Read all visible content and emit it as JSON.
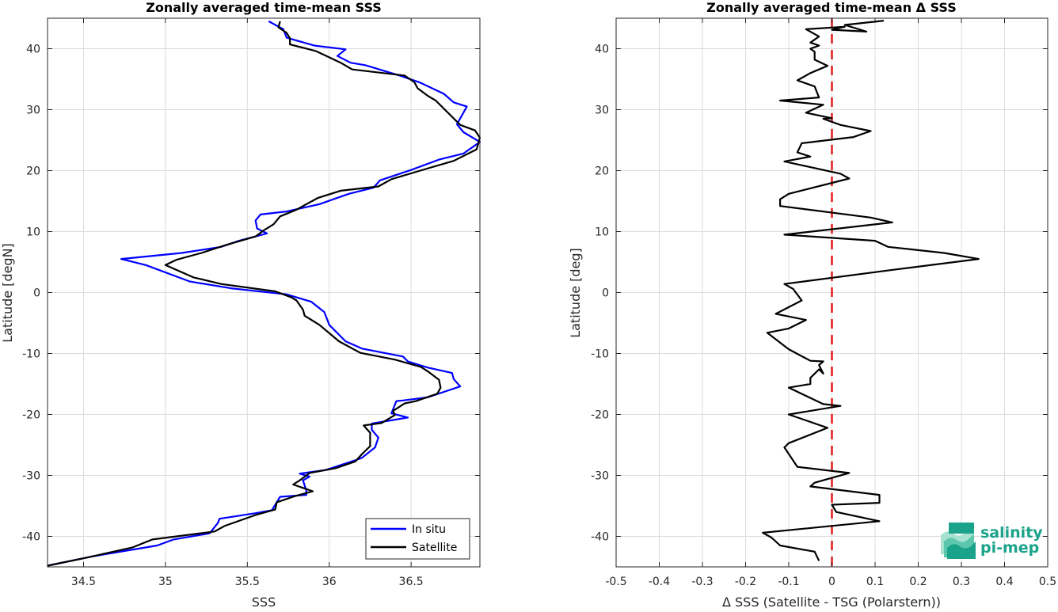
{
  "chart_data": [
    {
      "type": "line",
      "title": "Zonally averaged time-mean SSS",
      "xlabel": "SSS",
      "ylabel": "Latitude [degN]",
      "xlim": [
        34.28,
        36.92
      ],
      "ylim": [
        -45,
        45
      ],
      "xticks": [
        34.5,
        35,
        35.5,
        36,
        36.5
      ],
      "xtick_labels": [
        "34.5",
        "35",
        "35.5",
        "36",
        "36.5"
      ],
      "yticks": [
        -40,
        -30,
        -20,
        -10,
        0,
        10,
        20,
        30,
        40
      ],
      "ytick_labels": [
        "-40",
        "-30",
        "-20",
        "-10",
        "0",
        "10",
        "20",
        "30",
        "40"
      ],
      "grid": true,
      "legend_position": "bottom-right",
      "series": [
        {
          "name": "In situ",
          "color": "#0000ff",
          "points": [
            [
              34.28,
              -44.8
            ],
            [
              34.55,
              -43.3
            ],
            [
              34.95,
              -41.5
            ],
            [
              35.05,
              -40.5
            ],
            [
              35.27,
              -39.5
            ],
            [
              35.32,
              -37.8
            ],
            [
              35.33,
              -37.1
            ],
            [
              35.55,
              -36.2
            ],
            [
              35.65,
              -35.7
            ],
            [
              35.7,
              -33.5
            ],
            [
              35.86,
              -33.2
            ],
            [
              35.86,
              -32.5
            ],
            [
              35.84,
              -30.8
            ],
            [
              35.88,
              -30.2
            ],
            [
              35.82,
              -29.7
            ],
            [
              35.98,
              -29.1
            ],
            [
              36.16,
              -27.5
            ],
            [
              36.2,
              -27.1
            ],
            [
              36.28,
              -25.4
            ],
            [
              36.3,
              -23.8
            ],
            [
              36.26,
              -22.5
            ],
            [
              36.26,
              -21.5
            ],
            [
              36.48,
              -20.5
            ],
            [
              36.38,
              -19.8
            ],
            [
              36.41,
              -17.8
            ],
            [
              36.45,
              -17.7
            ],
            [
              36.6,
              -17.2
            ],
            [
              36.7,
              -16.3
            ],
            [
              36.8,
              -15.4
            ],
            [
              36.76,
              -14.2
            ],
            [
              36.75,
              -13.2
            ],
            [
              36.6,
              -12.3
            ],
            [
              36.48,
              -11.3
            ],
            [
              36.45,
              -10.5
            ],
            [
              36.2,
              -9.2
            ],
            [
              36.1,
              -8
            ],
            [
              36.0,
              -5.3
            ],
            [
              35.99,
              -4.6
            ],
            [
              35.97,
              -3.2
            ],
            [
              35.89,
              -1.5
            ],
            [
              35.74,
              -0.3
            ],
            [
              35.4,
              0.7
            ],
            [
              35.15,
              1.8
            ],
            [
              34.88,
              4.5
            ],
            [
              34.73,
              5.5
            ],
            [
              35.1,
              6.5
            ],
            [
              35.34,
              7.5
            ],
            [
              35.45,
              8.5
            ],
            [
              35.62,
              9.7
            ],
            [
              35.56,
              10.5
            ],
            [
              35.55,
              11.8
            ],
            [
              35.58,
              12.8
            ],
            [
              35.74,
              13.3
            ],
            [
              35.94,
              14.5
            ],
            [
              36.12,
              16.2
            ],
            [
              36.27,
              17.2
            ],
            [
              36.31,
              18.4
            ],
            [
              36.5,
              20.1
            ],
            [
              36.67,
              21.8
            ],
            [
              36.82,
              22.8
            ],
            [
              36.92,
              24.7
            ],
            [
              36.82,
              26.3
            ],
            [
              36.78,
              27.6
            ],
            [
              36.84,
              30.5
            ],
            [
              36.76,
              31.2
            ],
            [
              36.7,
              32.6
            ],
            [
              36.55,
              34.5
            ],
            [
              36.44,
              35.5
            ],
            [
              36.22,
              37.3
            ],
            [
              36.13,
              37.7
            ],
            [
              36.05,
              38.8
            ],
            [
              36.1,
              39.9
            ],
            [
              35.91,
              40.5
            ],
            [
              35.74,
              41.8
            ],
            [
              35.72,
              43.2
            ],
            [
              35.63,
              44.5
            ]
          ]
        },
        {
          "name": "Satellite",
          "color": "#000000",
          "points": [
            [
              34.28,
              -44.8
            ],
            [
              34.5,
              -43.6
            ],
            [
              34.8,
              -41.8
            ],
            [
              34.92,
              -40.5
            ],
            [
              35.3,
              -39.2
            ],
            [
              35.36,
              -38.3
            ],
            [
              35.55,
              -36.5
            ],
            [
              35.67,
              -35.6
            ],
            [
              35.68,
              -34.4
            ],
            [
              35.79,
              -33.4
            ],
            [
              35.9,
              -32.6
            ],
            [
              35.78,
              -31.5
            ],
            [
              35.82,
              -30.8
            ],
            [
              35.88,
              -29.6
            ],
            [
              36.04,
              -28.8
            ],
            [
              36.16,
              -27.7
            ],
            [
              36.2,
              -26.5
            ],
            [
              36.25,
              -25.2
            ],
            [
              36.25,
              -23
            ],
            [
              36.21,
              -21.8
            ],
            [
              36.32,
              -21.4
            ],
            [
              36.4,
              -20.1
            ],
            [
              36.39,
              -19.4
            ],
            [
              36.46,
              -18.2
            ],
            [
              36.53,
              -17.8
            ],
            [
              36.66,
              -16.6
            ],
            [
              36.68,
              -15.6
            ],
            [
              36.67,
              -14.3
            ],
            [
              36.6,
              -12.9
            ],
            [
              36.56,
              -12.2
            ],
            [
              36.4,
              -11
            ],
            [
              36.19,
              -9.9
            ],
            [
              36.06,
              -8
            ],
            [
              35.94,
              -5.3
            ],
            [
              35.85,
              -3.8
            ],
            [
              35.84,
              -2.8
            ],
            [
              35.8,
              -1.3
            ],
            [
              35.77,
              -0.8
            ],
            [
              35.67,
              0.2
            ],
            [
              35.34,
              1.4
            ],
            [
              35.17,
              2.5
            ],
            [
              35.0,
              4.5
            ],
            [
              35.07,
              5.4
            ],
            [
              35.22,
              6.5
            ],
            [
              35.37,
              7.8
            ],
            [
              35.55,
              9.2
            ],
            [
              35.6,
              10.2
            ],
            [
              35.66,
              11.2
            ],
            [
              35.7,
              12.5
            ],
            [
              35.8,
              13.6
            ],
            [
              35.93,
              15.5
            ],
            [
              36.07,
              16.7
            ],
            [
              36.3,
              17.4
            ],
            [
              36.38,
              18.6
            ],
            [
              36.58,
              20.2
            ],
            [
              36.76,
              21.6
            ],
            [
              36.9,
              23.5
            ],
            [
              36.92,
              25.4
            ],
            [
              36.89,
              26.6
            ],
            [
              36.8,
              27.5
            ],
            [
              36.65,
              31.5
            ],
            [
              36.6,
              32.3
            ],
            [
              36.54,
              33.5
            ],
            [
              36.52,
              34.5
            ],
            [
              36.46,
              35.6
            ],
            [
              36.14,
              36.6
            ],
            [
              36.07,
              37.7
            ],
            [
              35.92,
              39.6
            ],
            [
              35.76,
              40.7
            ],
            [
              35.76,
              41.7
            ],
            [
              35.74,
              42.6
            ],
            [
              35.69,
              43.5
            ],
            [
              35.7,
              44.5
            ]
          ]
        }
      ]
    },
    {
      "type": "line",
      "title": "Zonally averaged time-mean Δ SSS",
      "xlabel": "Δ SSS (Satellite - TSG (Polarstern))",
      "ylabel": "Latitude [deg]",
      "xlim": [
        -0.5,
        0.5
      ],
      "ylim": [
        -45,
        45
      ],
      "xticks": [
        -0.5,
        -0.4,
        -0.3,
        -0.2,
        -0.1,
        0,
        0.1,
        0.2,
        0.3,
        0.4,
        0.5
      ],
      "xtick_labels": [
        "-0.5",
        "-0.4",
        "-0.3",
        "-0.2",
        "-0.1",
        "0",
        "0.1",
        "0.2",
        "0.3",
        "0.4",
        "0.5"
      ],
      "yticks": [
        -40,
        -30,
        -20,
        -10,
        0,
        10,
        20,
        30,
        40
      ],
      "ytick_labels": [
        "-40",
        "-30",
        "-20",
        "-10",
        "0",
        "10",
        "20",
        "30",
        "40"
      ],
      "grid": true,
      "reference_line": {
        "x": 0,
        "color": "#e41a1c",
        "style": "dashed"
      },
      "series": [
        {
          "name": "",
          "color": "#000000",
          "points": [
            [
              -0.03,
              -44
            ],
            [
              -0.04,
              -42.5
            ],
            [
              -0.12,
              -41.5
            ],
            [
              -0.14,
              -40.2
            ],
            [
              -0.16,
              -39.4
            ],
            [
              0.11,
              -37.5
            ],
            [
              0.01,
              -36
            ],
            [
              0.0,
              -34.8
            ],
            [
              0.11,
              -34.5
            ],
            [
              0.11,
              -33.2
            ],
            [
              -0.05,
              -31.8
            ],
            [
              -0.04,
              -31.2
            ],
            [
              0.04,
              -29.6
            ],
            [
              -0.08,
              -28.6
            ],
            [
              -0.11,
              -25.4
            ],
            [
              -0.1,
              -24.7
            ],
            [
              -0.01,
              -22.2
            ],
            [
              -0.1,
              -20
            ],
            [
              0.02,
              -18.6
            ],
            [
              -0.02,
              -18.3
            ],
            [
              -0.1,
              -15.6
            ],
            [
              -0.05,
              -15
            ],
            [
              -0.05,
              -14
            ],
            [
              -0.03,
              -12.6
            ],
            [
              -0.02,
              -13.3
            ],
            [
              -0.03,
              -11.9
            ],
            [
              -0.02,
              -11.3
            ],
            [
              -0.05,
              -11.2
            ],
            [
              -0.1,
              -9.3
            ],
            [
              -0.15,
              -6.6
            ],
            [
              -0.1,
              -5.9
            ],
            [
              -0.06,
              -4.5
            ],
            [
              -0.13,
              -3.5
            ],
            [
              -0.07,
              -1.3
            ],
            [
              -0.09,
              0.6
            ],
            [
              -0.11,
              1.4
            ],
            [
              0.15,
              3.8
            ],
            [
              0.34,
              5.5
            ],
            [
              0.26,
              6.5
            ],
            [
              0.13,
              7.5
            ],
            [
              0.1,
              8.5
            ],
            [
              -0.11,
              9.5
            ],
            [
              0.14,
              11.5
            ],
            [
              0.09,
              12.3
            ],
            [
              -0.12,
              14.2
            ],
            [
              -0.12,
              15.3
            ],
            [
              -0.1,
              16.2
            ],
            [
              0.04,
              18.7
            ],
            [
              0.02,
              19.5
            ],
            [
              -0.11,
              21.5
            ],
            [
              -0.05,
              22.3
            ],
            [
              -0.08,
              23
            ],
            [
              -0.07,
              24.5
            ],
            [
              0.05,
              25.5
            ],
            [
              0.09,
              26.5
            ],
            [
              0.02,
              27.5
            ],
            [
              -0.02,
              28.5
            ],
            [
              0.0,
              28.6
            ],
            [
              -0.06,
              29.5
            ],
            [
              -0.02,
              30.8
            ],
            [
              -0.12,
              31.5
            ],
            [
              -0.03,
              32
            ],
            [
              -0.04,
              33.8
            ],
            [
              -0.08,
              34.8
            ],
            [
              -0.05,
              36
            ],
            [
              -0.01,
              37.2
            ],
            [
              -0.04,
              38.2
            ],
            [
              -0.04,
              39.5
            ],
            [
              -0.05,
              40
            ],
            [
              -0.03,
              40.5
            ],
            [
              -0.05,
              41
            ],
            [
              -0.03,
              42
            ],
            [
              -0.06,
              43.2
            ],
            [
              0.03,
              43.6
            ],
            [
              0.0,
              43.1
            ],
            [
              0.08,
              42.8
            ],
            [
              0.03,
              43.9
            ],
            [
              0.12,
              44.6
            ]
          ]
        }
      ]
    }
  ],
  "legend": {
    "insitu_label": "In situ",
    "satellite_label": "Satellite"
  },
  "logo": {
    "line1": "salinity",
    "line2": "pi-mep",
    "color": "#1aa38a"
  }
}
